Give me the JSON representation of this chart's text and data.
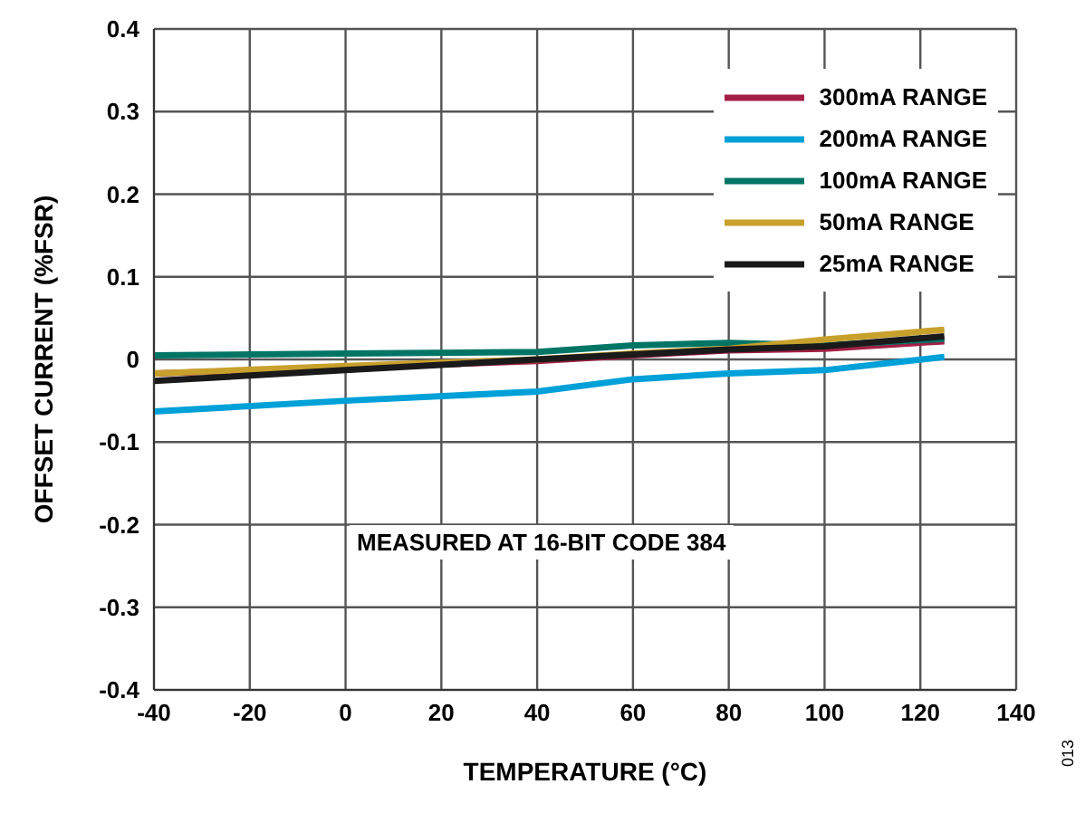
{
  "chart_data": {
    "type": "line",
    "xlabel": "TEMPERATURE (°C)",
    "ylabel": "OFFSET CURRENT (%FSR)",
    "x": [
      -40,
      0,
      40,
      60,
      80,
      100,
      125
    ],
    "series": [
      {
        "name": "300mA RANGE",
        "color": "#a31f45",
        "values": [
          -0.017,
          -0.01,
          -0.002,
          0.005,
          0.011,
          0.013,
          0.022
        ]
      },
      {
        "name": "200mA RANGE",
        "color": "#00a0d8",
        "values": [
          -0.063,
          -0.05,
          -0.039,
          -0.024,
          -0.017,
          -0.013,
          0.003
        ]
      },
      {
        "name": "100mA RANGE",
        "color": "#007566",
        "values": [
          0.005,
          0.007,
          0.009,
          0.017,
          0.02,
          0.017,
          0.025
        ]
      },
      {
        "name": "50mA RANGE",
        "color": "#c8a02c",
        "values": [
          -0.017,
          -0.008,
          0,
          0.007,
          0.013,
          0.024,
          0.036
        ]
      },
      {
        "name": "25mA RANGE",
        "color": "#1a1a1a",
        "values": [
          -0.026,
          -0.013,
          0,
          0.006,
          0.012,
          0.016,
          0.028
        ]
      }
    ],
    "xlim": [
      -40,
      140
    ],
    "xticks": [
      -40,
      -20,
      0,
      20,
      40,
      60,
      80,
      100,
      120,
      140
    ],
    "ylim": [
      -0.4,
      0.4
    ],
    "yticks": [
      -0.4,
      -0.3,
      -0.2,
      -0.1,
      0,
      0.1,
      0.2,
      0.3,
      0.4
    ],
    "grid": true,
    "legend": "top right",
    "marker": "none",
    "line_style": "solid",
    "annotations": [
      "MEASURED AT 16-BIT CODE 384",
      "013"
    ]
  }
}
